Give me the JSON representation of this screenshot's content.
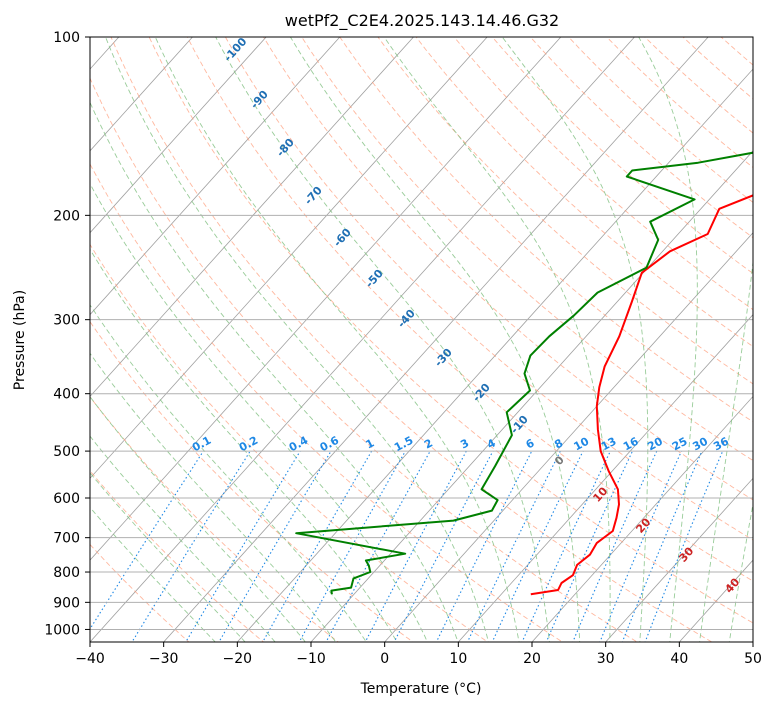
{
  "chart_data": {
    "type": "line",
    "title": "wetPf2_C2E4.2025.143.14.46.G32",
    "xlabel": "Temperature (°C)",
    "ylabel": "Pressure (hPa)",
    "xlim": [
      -40,
      50
    ],
    "ylim": [
      1050,
      100
    ],
    "y_scale": "log",
    "x_ticks": [
      "−40",
      "−30",
      "−20",
      "−10",
      "0",
      "10",
      "20",
      "30",
      "40",
      "50"
    ],
    "y_ticks": [
      {
        "p": 100,
        "label": "100"
      },
      {
        "p": 200,
        "label": "200"
      },
      {
        "p": 300,
        "label": "300"
      },
      {
        "p": 400,
        "label": "400"
      },
      {
        "p": 500,
        "label": "500"
      },
      {
        "p": 600,
        "label": "600"
      },
      {
        "p": 700,
        "label": "700"
      },
      {
        "p": 800,
        "label": "800"
      },
      {
        "p": 900,
        "label": "900"
      },
      {
        "p": 1000,
        "label": "1000"
      }
    ],
    "grid": true,
    "colors": {
      "temperature": "#ff0000",
      "dewpoint": "#008000",
      "isotherm": "#a0a0a0",
      "dry_adiabat": "#ff9a76",
      "moist_adiabat": "#7fbf7f",
      "mixing_ratio": "#1e88e5",
      "dry_adiabat_label": "#1f6fb4",
      "moist_label": "#cc2222"
    },
    "series": [
      {
        "key": "temperature",
        "points": [
          [
            14.0,
            872
          ],
          [
            17.2,
            858
          ],
          [
            16.8,
            835
          ],
          [
            17.4,
            810
          ],
          [
            16.7,
            778
          ],
          [
            17.2,
            748
          ],
          [
            16.7,
            715
          ],
          [
            17.4,
            682
          ],
          [
            16.3,
            648
          ],
          [
            15.0,
            615
          ],
          [
            13.0,
            580
          ],
          [
            9.5,
            540
          ],
          [
            6.0,
            500
          ],
          [
            3.0,
            460
          ],
          [
            0.0,
            420
          ],
          [
            -2.0,
            390
          ],
          [
            -3.8,
            360
          ],
          [
            -5.5,
            320
          ],
          [
            -8.0,
            280
          ],
          [
            -10.2,
            250
          ],
          [
            -9.0,
            230
          ],
          [
            -6.0,
            215
          ],
          [
            -7.5,
            195
          ],
          [
            -3.0,
            180
          ],
          [
            0.5,
            165
          ],
          [
            5.0,
            145
          ],
          [
            8.5,
            130
          ],
          [
            13.0,
            115
          ],
          [
            14.8,
            106
          ],
          [
            17.2,
            100
          ]
        ]
      },
      {
        "key": "dewpoint",
        "points": [
          [
            -13.0,
            872
          ],
          [
            -13.5,
            860
          ],
          [
            -11.2,
            850
          ],
          [
            -12.0,
            820
          ],
          [
            -10.5,
            800
          ],
          [
            -11.5,
            780
          ],
          [
            -12.5,
            765
          ],
          [
            -8.0,
            745
          ],
          [
            -25.3,
            688
          ],
          [
            -5.5,
            655
          ],
          [
            -1.5,
            630
          ],
          [
            -2.0,
            605
          ],
          [
            -5.5,
            580
          ],
          [
            -6.5,
            530
          ],
          [
            -8.0,
            470
          ],
          [
            -11.5,
            430
          ],
          [
            -11.0,
            395
          ],
          [
            -13.8,
            370
          ],
          [
            -15.2,
            345
          ],
          [
            -15.0,
            320
          ],
          [
            -14.2,
            295
          ],
          [
            -13.8,
            270
          ],
          [
            -10.2,
            245
          ],
          [
            -12.0,
            220
          ],
          [
            -15.3,
            205
          ],
          [
            -12.0,
            188
          ],
          [
            -24.0,
            172
          ],
          [
            -24.0,
            168
          ],
          [
            -16.0,
            163
          ],
          [
            -8.0,
            155
          ],
          [
            -4.5,
            140
          ],
          [
            -5.0,
            125
          ],
          [
            -8.5,
            115
          ],
          [
            -7.5,
            106
          ],
          [
            -4.8,
            100
          ]
        ]
      }
    ],
    "mixing_ratios": [
      "0.1",
      "0.2",
      "0.4",
      "0.6",
      "1",
      "1.5",
      "2",
      "3",
      "4",
      "6",
      "8",
      "10",
      "13",
      "16",
      "20",
      "25",
      "30",
      "36"
    ],
    "dry_adiabat_labels": [
      "-100",
      "-90",
      "-80",
      "-70",
      "-60",
      "-50",
      "-40",
      "-30",
      "-20",
      "-10",
      "0"
    ],
    "moist_adiabat_labels": [
      "10",
      "20",
      "30",
      "40"
    ]
  }
}
